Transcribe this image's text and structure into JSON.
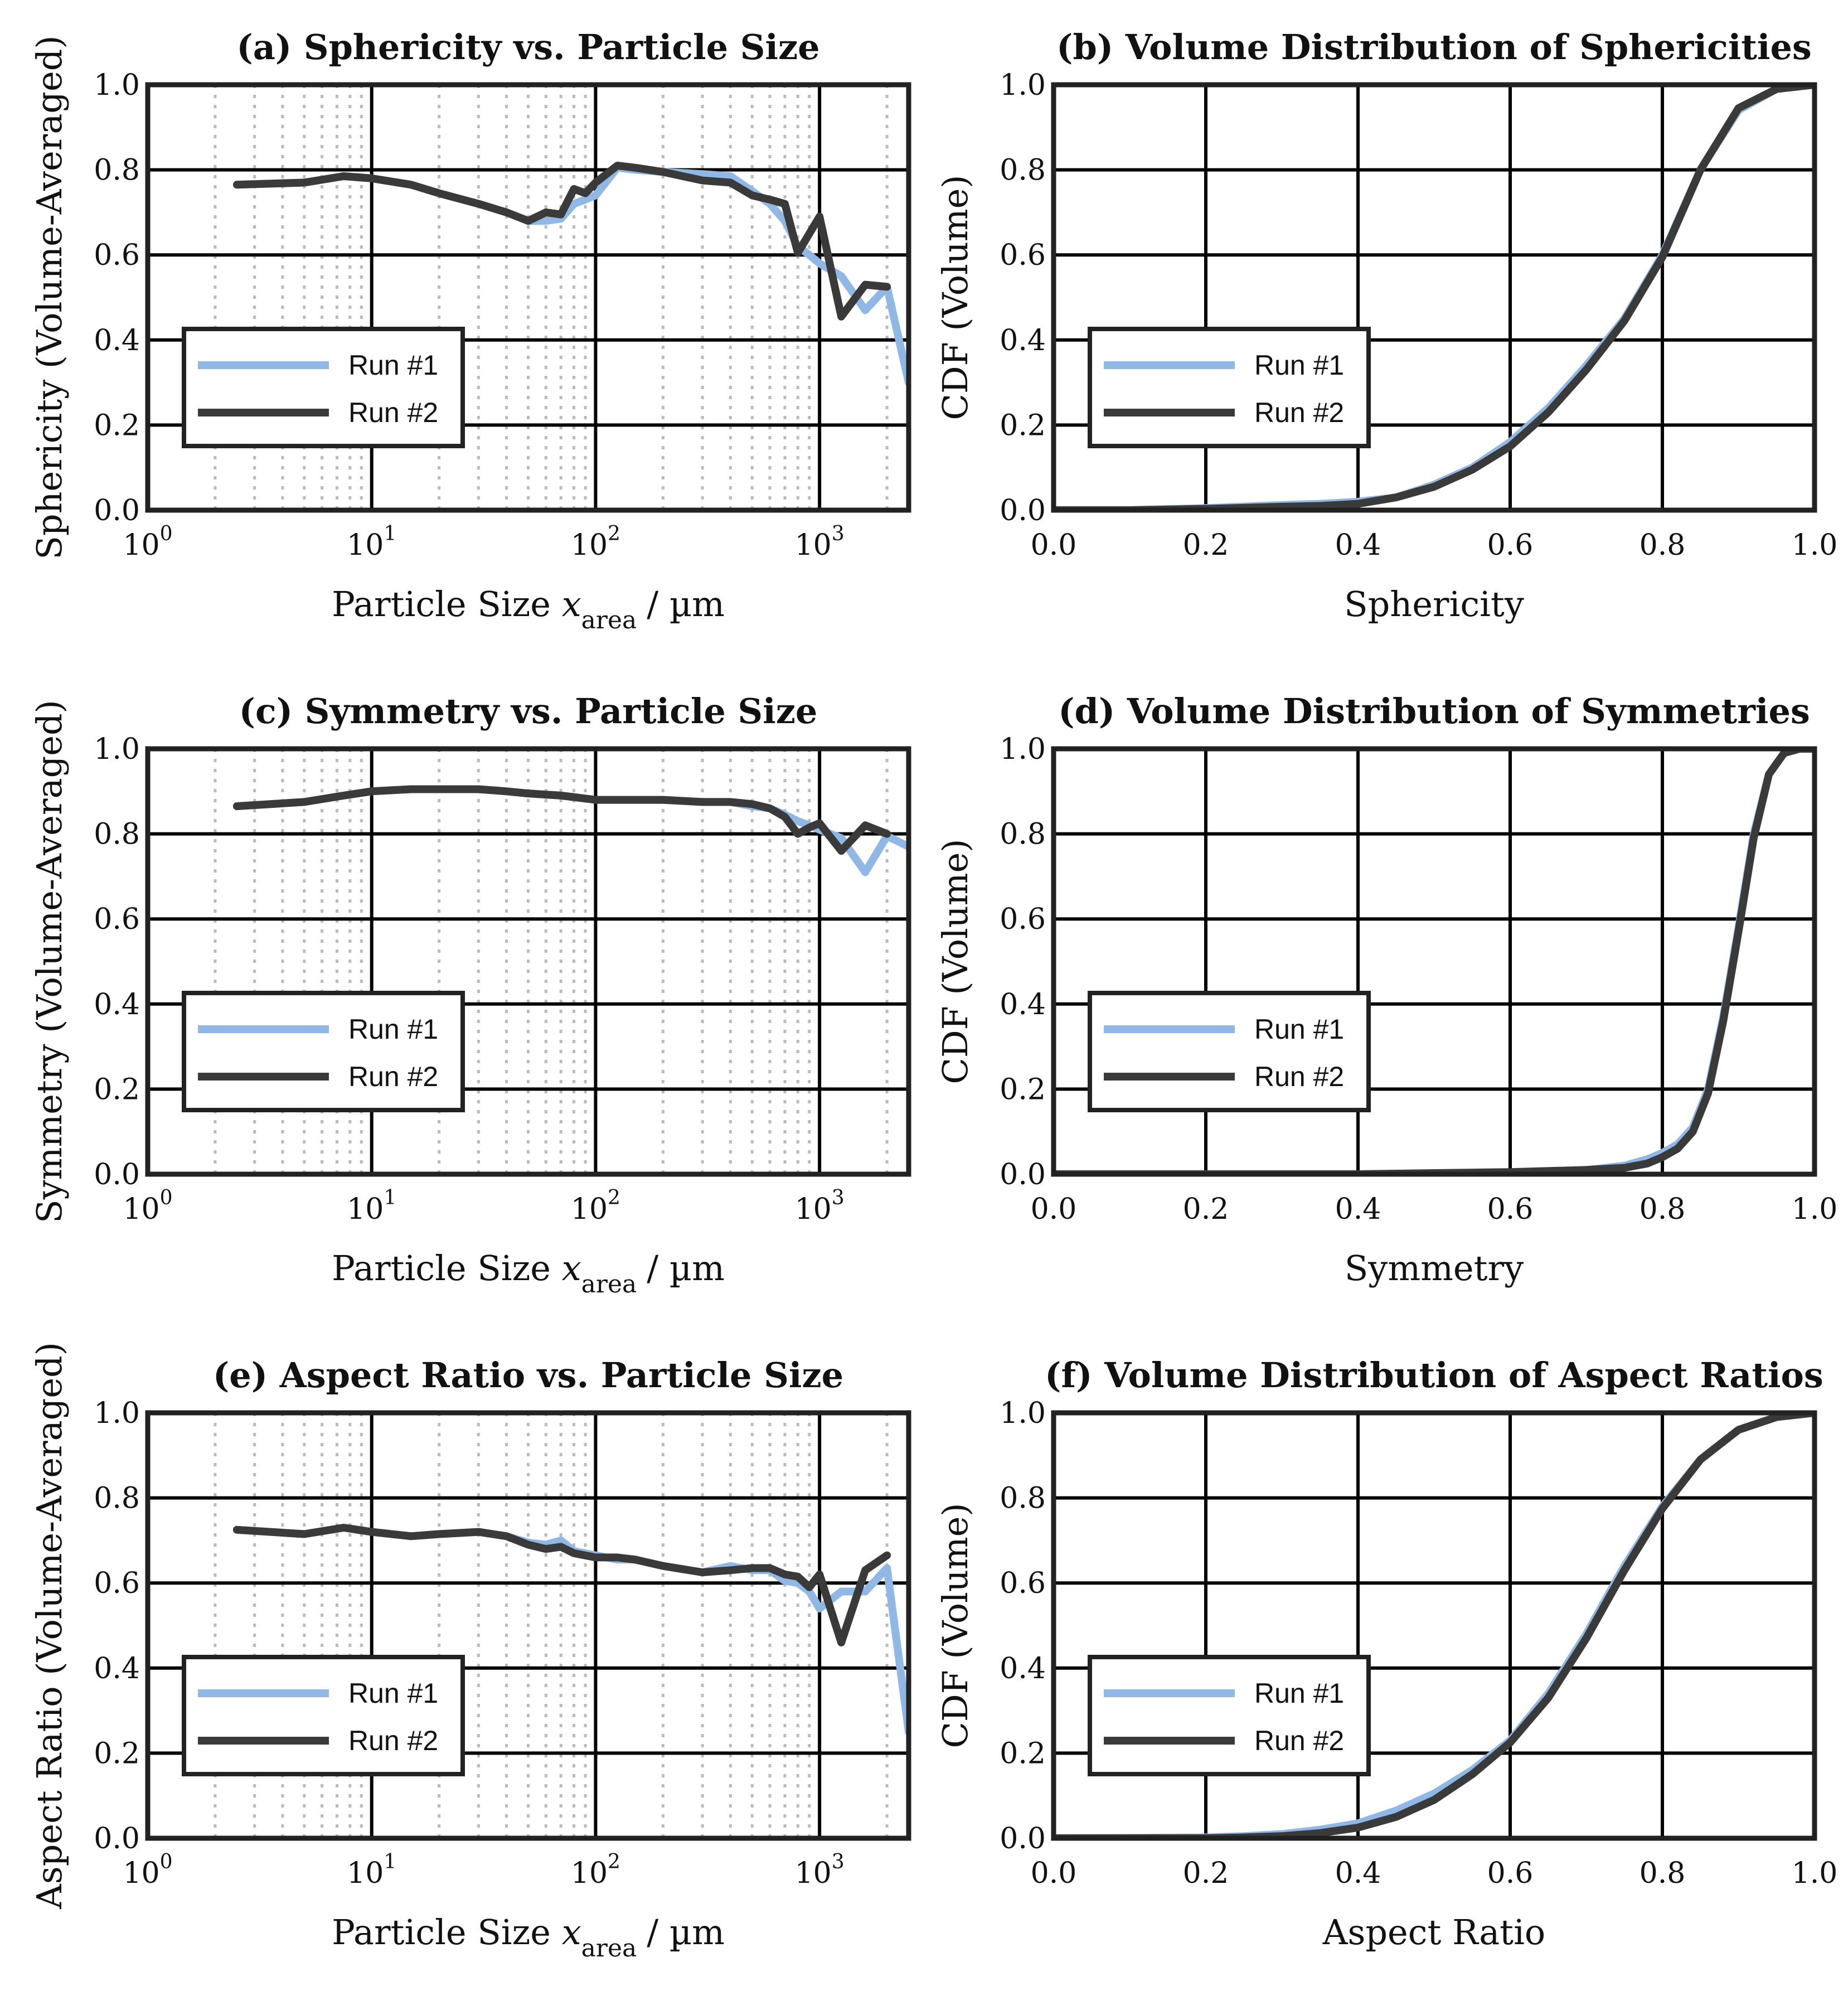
{
  "figure": {
    "colors": {
      "run1": "#8fb8e6",
      "run2": "#3a3a3a",
      "frame": "#222222",
      "major_grid": "#000000",
      "minor_grid": "#bbbbbb"
    },
    "legend": {
      "run1": "Run #1",
      "run2": "Run #2"
    },
    "unit": "/ µm",
    "xsub": "area"
  },
  "chart_data": [
    {
      "id": "a",
      "type": "line",
      "xscale": "log",
      "title": "(a) Sphericity vs. Particle Size",
      "ylabel": "Sphericity (Volume-Averaged)",
      "xlabel": "Particle Size",
      "xvar": "x",
      "xlim": [
        1,
        2500
      ],
      "ylim": [
        0,
        1
      ],
      "xticks": [
        {
          "b": "10",
          "e": "0"
        },
        {
          "b": "10",
          "e": "1"
        },
        {
          "b": "10",
          "e": "2"
        },
        {
          "b": "10",
          "e": "3"
        }
      ],
      "yticks": [
        "0.0",
        "0.2",
        "0.4",
        "0.6",
        "0.8",
        "1.0"
      ],
      "legend_position": "lower-left",
      "series": [
        {
          "name": "Run #1",
          "x": [
            2.5,
            5,
            7.5,
            10,
            15,
            20,
            30,
            40,
            50,
            60,
            70,
            80,
            90,
            100,
            125,
            150,
            200,
            300,
            400,
            500,
            600,
            700,
            800,
            900,
            1000,
            1250,
            1600,
            2000,
            2500
          ],
          "y": [
            0.765,
            0.77,
            0.785,
            0.78,
            0.765,
            0.745,
            0.72,
            0.7,
            0.68,
            0.68,
            0.685,
            0.72,
            0.73,
            0.74,
            0.805,
            0.8,
            0.795,
            0.79,
            0.785,
            0.75,
            0.72,
            0.68,
            0.62,
            0.6,
            0.58,
            0.55,
            0.47,
            0.525,
            0.3
          ]
        },
        {
          "name": "Run #2",
          "x": [
            2.5,
            5,
            7.5,
            10,
            15,
            20,
            30,
            40,
            50,
            60,
            70,
            80,
            90,
            100,
            125,
            150,
            200,
            300,
            400,
            500,
            600,
            700,
            800,
            900,
            1000,
            1250,
            1600,
            2000
          ],
          "y": [
            0.765,
            0.77,
            0.785,
            0.78,
            0.765,
            0.745,
            0.72,
            0.7,
            0.68,
            0.7,
            0.695,
            0.755,
            0.745,
            0.77,
            0.81,
            0.805,
            0.795,
            0.775,
            0.77,
            0.74,
            0.73,
            0.72,
            0.605,
            0.65,
            0.69,
            0.455,
            0.53,
            0.525
          ]
        }
      ]
    },
    {
      "id": "b",
      "type": "line",
      "xscale": "linear",
      "title": "(b) Volume Distribution of Sphericities",
      "ylabel": "CDF (Volume)",
      "xlabel": "Sphericity",
      "xlim": [
        0,
        1
      ],
      "ylim": [
        0,
        1
      ],
      "xticks": [
        "0.0",
        "0.2",
        "0.4",
        "0.6",
        "0.8",
        "1.0"
      ],
      "yticks": [
        "0.0",
        "0.2",
        "0.4",
        "0.6",
        "0.8",
        "1.0"
      ],
      "legend_position": "lower-left",
      "series": [
        {
          "name": "Run #1",
          "x": [
            0,
            0.1,
            0.2,
            0.3,
            0.35,
            0.4,
            0.45,
            0.5,
            0.55,
            0.6,
            0.65,
            0.7,
            0.75,
            0.8,
            0.85,
            0.9,
            0.95,
            1.0
          ],
          "y": [
            0.0,
            0.0,
            0.005,
            0.012,
            0.015,
            0.02,
            0.03,
            0.06,
            0.1,
            0.16,
            0.24,
            0.34,
            0.45,
            0.6,
            0.8,
            0.94,
            0.99,
            1.0
          ]
        },
        {
          "name": "Run #2",
          "x": [
            0,
            0.1,
            0.2,
            0.3,
            0.35,
            0.4,
            0.45,
            0.5,
            0.55,
            0.6,
            0.65,
            0.7,
            0.75,
            0.8,
            0.85,
            0.9,
            0.95,
            1.0
          ],
          "y": [
            0.0,
            0.0,
            0.003,
            0.008,
            0.01,
            0.015,
            0.03,
            0.055,
            0.095,
            0.15,
            0.23,
            0.33,
            0.445,
            0.595,
            0.8,
            0.945,
            0.99,
            1.0
          ]
        }
      ]
    },
    {
      "id": "c",
      "type": "line",
      "xscale": "log",
      "title": "(c) Symmetry vs. Particle Size",
      "ylabel": "Symmetry (Volume-Averaged)",
      "xlabel": "Particle Size",
      "xvar": "x",
      "xlim": [
        1,
        2500
      ],
      "ylim": [
        0,
        1
      ],
      "xticks": [
        {
          "b": "10",
          "e": "0"
        },
        {
          "b": "10",
          "e": "1"
        },
        {
          "b": "10",
          "e": "2"
        },
        {
          "b": "10",
          "e": "3"
        }
      ],
      "yticks": [
        "0.0",
        "0.2",
        "0.4",
        "0.6",
        "0.8",
        "1.0"
      ],
      "legend_position": "lower-left",
      "series": [
        {
          "name": "Run #1",
          "x": [
            2.5,
            5,
            7.5,
            10,
            15,
            20,
            30,
            40,
            50,
            70,
            100,
            150,
            200,
            300,
            400,
            500,
            600,
            700,
            800,
            900,
            1000,
            1250,
            1600,
            2000,
            2500
          ],
          "y": [
            0.865,
            0.875,
            0.89,
            0.9,
            0.905,
            0.905,
            0.905,
            0.9,
            0.895,
            0.89,
            0.88,
            0.88,
            0.88,
            0.875,
            0.875,
            0.865,
            0.86,
            0.845,
            0.83,
            0.82,
            0.81,
            0.79,
            0.71,
            0.795,
            0.77
          ]
        },
        {
          "name": "Run #2",
          "x": [
            2.5,
            5,
            7.5,
            10,
            15,
            20,
            30,
            40,
            50,
            70,
            100,
            150,
            200,
            300,
            400,
            500,
            600,
            700,
            800,
            900,
            1000,
            1250,
            1600,
            2000
          ],
          "y": [
            0.865,
            0.875,
            0.89,
            0.9,
            0.905,
            0.905,
            0.905,
            0.9,
            0.895,
            0.89,
            0.88,
            0.88,
            0.88,
            0.875,
            0.875,
            0.87,
            0.86,
            0.84,
            0.8,
            0.815,
            0.825,
            0.76,
            0.82,
            0.8
          ]
        }
      ]
    },
    {
      "id": "d",
      "type": "line",
      "xscale": "linear",
      "title": "(d) Volume Distribution of Symmetries",
      "ylabel": "CDF (Volume)",
      "xlabel": "Symmetry",
      "xlim": [
        0,
        1
      ],
      "ylim": [
        0,
        1
      ],
      "xticks": [
        "0.0",
        "0.2",
        "0.4",
        "0.6",
        "0.8",
        "1.0"
      ],
      "yticks": [
        "0.0",
        "0.2",
        "0.4",
        "0.6",
        "0.8",
        "1.0"
      ],
      "legend_position": "lower-left",
      "series": [
        {
          "name": "Run #1",
          "x": [
            0,
            0.2,
            0.4,
            0.6,
            0.7,
            0.75,
            0.78,
            0.8,
            0.82,
            0.84,
            0.86,
            0.88,
            0.9,
            0.92,
            0.94,
            0.96,
            0.98,
            1.0
          ],
          "y": [
            0.0,
            0.0,
            0.0,
            0.003,
            0.01,
            0.02,
            0.035,
            0.05,
            0.07,
            0.11,
            0.2,
            0.37,
            0.58,
            0.8,
            0.94,
            0.99,
            1.0,
            1.0
          ]
        },
        {
          "name": "Run #2",
          "x": [
            0,
            0.2,
            0.4,
            0.6,
            0.7,
            0.75,
            0.78,
            0.8,
            0.82,
            0.84,
            0.86,
            0.88,
            0.9,
            0.92,
            0.94,
            0.96,
            0.98,
            1.0
          ],
          "y": [
            0.0,
            0.0,
            0.0,
            0.005,
            0.01,
            0.015,
            0.025,
            0.04,
            0.06,
            0.1,
            0.19,
            0.36,
            0.57,
            0.79,
            0.94,
            0.99,
            1.0,
            1.0
          ]
        }
      ]
    },
    {
      "id": "e",
      "type": "line",
      "xscale": "log",
      "title": "(e) Aspect Ratio vs. Particle Size",
      "ylabel": "Aspect Ratio (Volume-Averaged)",
      "xlabel": "Particle Size",
      "xvar": "x",
      "xlim": [
        1,
        2500
      ],
      "ylim": [
        0,
        1
      ],
      "xticks": [
        {
          "b": "10",
          "e": "0"
        },
        {
          "b": "10",
          "e": "1"
        },
        {
          "b": "10",
          "e": "2"
        },
        {
          "b": "10",
          "e": "3"
        }
      ],
      "yticks": [
        "0.0",
        "0.2",
        "0.4",
        "0.6",
        "0.8",
        "1.0"
      ],
      "legend_position": "lower-left",
      "series": [
        {
          "name": "Run #1",
          "x": [
            2.5,
            5,
            7.5,
            10,
            15,
            20,
            30,
            40,
            50,
            60,
            70,
            80,
            100,
            125,
            150,
            200,
            300,
            400,
            500,
            600,
            700,
            800,
            900,
            1000,
            1250,
            1600,
            2000,
            2500
          ],
          "y": [
            0.725,
            0.715,
            0.73,
            0.72,
            0.71,
            0.715,
            0.72,
            0.71,
            0.695,
            0.69,
            0.7,
            0.675,
            0.665,
            0.655,
            0.655,
            0.64,
            0.625,
            0.64,
            0.63,
            0.63,
            0.605,
            0.6,
            0.58,
            0.54,
            0.58,
            0.58,
            0.635,
            0.25
          ]
        },
        {
          "name": "Run #2",
          "x": [
            2.5,
            5,
            7.5,
            10,
            15,
            20,
            30,
            40,
            50,
            60,
            70,
            80,
            100,
            125,
            150,
            200,
            300,
            400,
            500,
            600,
            700,
            800,
            900,
            1000,
            1250,
            1600,
            2000
          ],
          "y": [
            0.725,
            0.715,
            0.73,
            0.72,
            0.71,
            0.715,
            0.72,
            0.71,
            0.69,
            0.68,
            0.685,
            0.67,
            0.66,
            0.66,
            0.655,
            0.64,
            0.625,
            0.63,
            0.635,
            0.635,
            0.62,
            0.615,
            0.59,
            0.62,
            0.46,
            0.63,
            0.665
          ]
        }
      ]
    },
    {
      "id": "f",
      "type": "line",
      "xscale": "linear",
      "title": "(f) Volume Distribution of Aspect Ratios",
      "ylabel": "CDF (Volume)",
      "xlabel": "Aspect Ratio",
      "xlim": [
        0,
        1
      ],
      "ylim": [
        0,
        1
      ],
      "xticks": [
        "0.0",
        "0.2",
        "0.4",
        "0.6",
        "0.8",
        "1.0"
      ],
      "yticks": [
        "0.0",
        "0.2",
        "0.4",
        "0.6",
        "0.8",
        "1.0"
      ],
      "legend_position": "lower-left",
      "series": [
        {
          "name": "Run #1",
          "x": [
            0,
            0.2,
            0.25,
            0.3,
            0.35,
            0.4,
            0.45,
            0.5,
            0.55,
            0.6,
            0.65,
            0.7,
            0.75,
            0.8,
            0.85,
            0.9,
            0.95,
            1.0
          ],
          "y": [
            0.0,
            0.002,
            0.005,
            0.01,
            0.02,
            0.035,
            0.065,
            0.105,
            0.16,
            0.23,
            0.34,
            0.48,
            0.64,
            0.78,
            0.89,
            0.96,
            0.99,
            1.0
          ]
        },
        {
          "name": "Run #2",
          "x": [
            0,
            0.2,
            0.25,
            0.3,
            0.35,
            0.4,
            0.45,
            0.5,
            0.55,
            0.6,
            0.65,
            0.7,
            0.75,
            0.8,
            0.85,
            0.9,
            0.95,
            1.0
          ],
          "y": [
            0.0,
            0.0,
            0.002,
            0.005,
            0.012,
            0.025,
            0.05,
            0.09,
            0.15,
            0.225,
            0.33,
            0.47,
            0.63,
            0.775,
            0.89,
            0.96,
            0.99,
            1.0
          ]
        }
      ]
    }
  ]
}
